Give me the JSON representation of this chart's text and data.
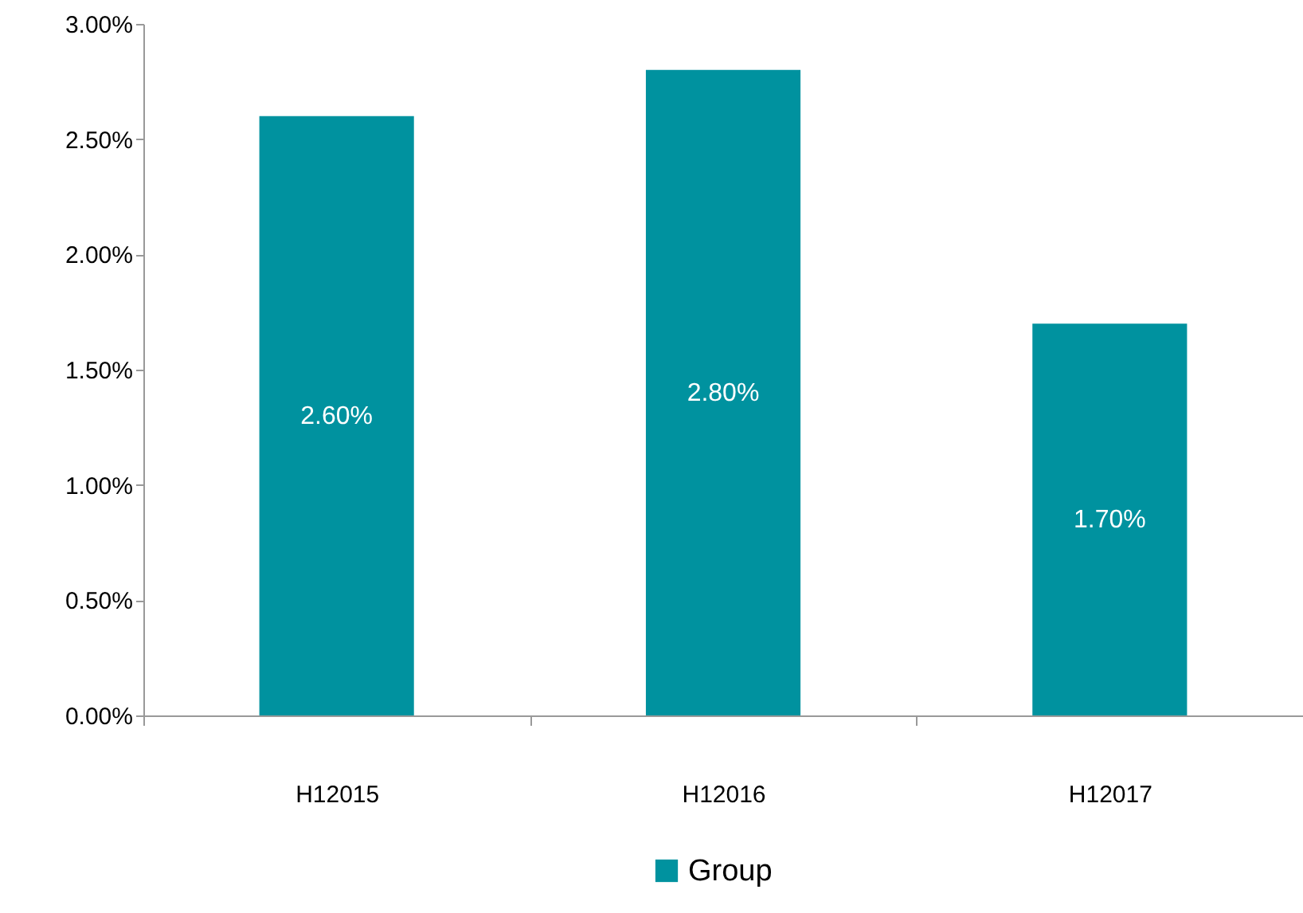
{
  "chart_data": {
    "type": "bar",
    "categories": [
      "H12015",
      "H12016",
      "H12017"
    ],
    "series": [
      {
        "name": "Group",
        "color": "#00929f",
        "values": [
          2.6,
          2.8,
          1.7
        ],
        "value_labels": [
          "2.60%",
          "2.80%",
          "1.70%"
        ]
      }
    ],
    "ylim": [
      0,
      3
    ],
    "yticks": [
      {
        "value": 0,
        "label": "0.00%"
      },
      {
        "value": 0.5,
        "label": "0.50%"
      },
      {
        "value": 1,
        "label": "1.00%"
      },
      {
        "value": 1.5,
        "label": "1.50%"
      },
      {
        "value": 2,
        "label": "2.00%"
      },
      {
        "value": 2.5,
        "label": "2.50%"
      },
      {
        "value": 3,
        "label": "3.00%"
      }
    ],
    "grid": false,
    "legend": "bottom"
  }
}
